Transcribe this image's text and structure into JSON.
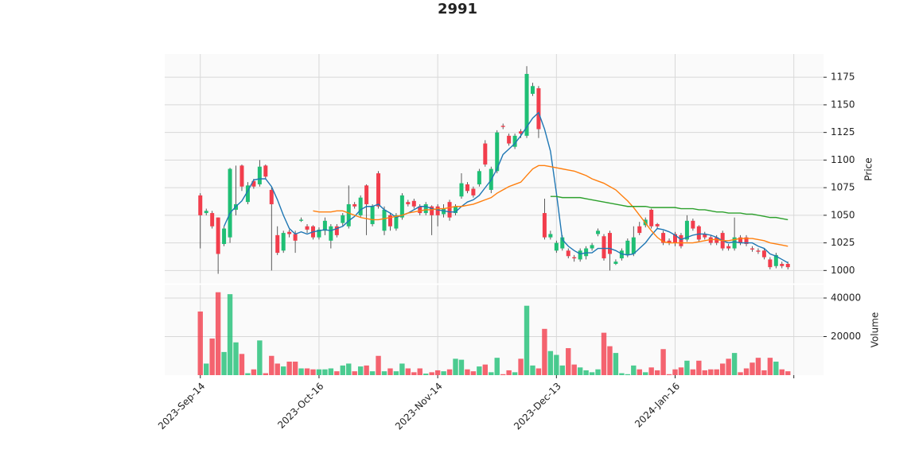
{
  "chart_data": {
    "type": "candlestick",
    "title": "2991",
    "categories": [
      "2023-Sep-14",
      null,
      null,
      null,
      null,
      null,
      null,
      null,
      null,
      null,
      null,
      null,
      null,
      null,
      null,
      null,
      null,
      null,
      null,
      null,
      "2023-Oct-16",
      null,
      null,
      null,
      null,
      null,
      null,
      null,
      null,
      null,
      null,
      null,
      null,
      null,
      null,
      null,
      null,
      null,
      null,
      null,
      "2023-Nov-14",
      null,
      null,
      null,
      null,
      null,
      null,
      null,
      null,
      null,
      null,
      null,
      null,
      null,
      null,
      null,
      null,
      null,
      null,
      null,
      "2023-Dec-13",
      null,
      null,
      null,
      null,
      null,
      null,
      null,
      null,
      null,
      null,
      null,
      null,
      null,
      null,
      null,
      null,
      null,
      null,
      null,
      "2024-Jan-16",
      null,
      null,
      null,
      null,
      null,
      null,
      null,
      null,
      null,
      null,
      null,
      null,
      null,
      null,
      null,
      null,
      null,
      null,
      null
    ],
    "open": [
      1068,
      1052,
      1052,
      1048,
      1024,
      1030,
      1055,
      1095,
      1062,
      1081,
      1078,
      1095,
      1073,
      1032,
      1018,
      1035,
      1033,
      1045,
      1040,
      1040,
      1030,
      1036,
      1027,
      1040,
      1043,
      1040,
      1060,
      1050,
      1077,
      1042,
      1088,
      1036,
      1050,
      1038,
      1048,
      1062,
      1063,
      1058,
      1052,
      1058,
      1058,
      1051,
      1062,
      1052,
      1067,
      1078,
      1074,
      1078,
      1115,
      1073,
      1090,
      1131,
      1122,
      1112,
      1126,
      1122,
      1160,
      1165,
      1052,
      1030,
      1018,
      1020,
      1018,
      1012,
      1010,
      1013,
      1020,
      1033,
      1031,
      1034,
      1006,
      1011,
      1014,
      1015,
      1040,
      1041,
      1055,
      1042,
      1034,
      1027,
      1033,
      1032,
      1028,
      1045,
      1040,
      1033,
      1030,
      1030,
      1034,
      1022,
      1020,
      1030,
      1030,
      1020,
      1018,
      1018,
      1010,
      1004,
      1006,
      1006
    ],
    "high": [
      1070,
      1056,
      1054,
      1048,
      1040,
      1093,
      1095,
      1096,
      1080,
      1083,
      1100,
      1096,
      1075,
      1040,
      1036,
      1037,
      1036,
      1048,
      1042,
      1041,
      1039,
      1048,
      1042,
      1042,
      1052,
      1077,
      1062,
      1068,
      1078,
      1060,
      1090,
      1058,
      1052,
      1052,
      1070,
      1064,
      1065,
      1060,
      1062,
      1059,
      1060,
      1060,
      1064,
      1060,
      1088,
      1080,
      1076,
      1092,
      1118,
      1094,
      1127,
      1133,
      1124,
      1124,
      1128,
      1185,
      1170,
      1167,
      1065,
      1036,
      1027,
      1032,
      1020,
      1014,
      1020,
      1022,
      1025,
      1038,
      1033,
      1036,
      1010,
      1020,
      1029,
      1040,
      1044,
      1048,
      1056,
      1043,
      1036,
      1029,
      1035,
      1034,
      1050,
      1047,
      1041,
      1035,
      1032,
      1032,
      1036,
      1024,
      1048,
      1032,
      1032,
      1022,
      1020,
      1020,
      1012,
      1016,
      1008,
      1008
    ],
    "low": [
      1020,
      1050,
      1038,
      997,
      1022,
      1025,
      1050,
      1072,
      1060,
      1074,
      1076,
      1083,
      1000,
      1014,
      1016,
      1030,
      1016,
      1044,
      1034,
      1028,
      1028,
      1032,
      1020,
      1030,
      1040,
      1038,
      1056,
      1048,
      1032,
      1040,
      1056,
      1032,
      1036,
      1036,
      1046,
      1058,
      1056,
      1050,
      1050,
      1032,
      1040,
      1048,
      1045,
      1050,
      1065,
      1070,
      1066,
      1076,
      1094,
      1070,
      1088,
      1128,
      1113,
      1110,
      1120,
      1120,
      1158,
      1120,
      1028,
      1028,
      1016,
      1018,
      1011,
      1008,
      1008,
      1010,
      1018,
      1031,
      1009,
      1000,
      1005,
      1009,
      1012,
      1013,
      1032,
      1039,
      1038,
      1038,
      1023,
      1023,
      1022,
      1020,
      1026,
      1036,
      1026,
      1028,
      1023,
      1023,
      1018,
      1018,
      1018,
      1023,
      1022,
      1017,
      1015,
      1010,
      1001,
      1002,
      1002,
      1001
    ],
    "close": [
      1050,
      1054,
      1040,
      1015,
      1038,
      1092,
      1060,
      1076,
      1077,
      1076,
      1094,
      1085,
      1060,
      1016,
      1034,
      1033,
      1027,
      1046,
      1037,
      1030,
      1037,
      1045,
      1040,
      1032,
      1050,
      1060,
      1058,
      1066,
      1060,
      1058,
      1058,
      1055,
      1040,
      1050,
      1068,
      1060,
      1058,
      1052,
      1060,
      1050,
      1050,
      1056,
      1048,
      1058,
      1079,
      1072,
      1068,
      1090,
      1096,
      1092,
      1125,
      1130,
      1115,
      1122,
      1124,
      1178,
      1167,
      1128,
      1030,
      1033,
      1025,
      1030,
      1013,
      1011,
      1018,
      1020,
      1023,
      1036,
      1011,
      1015,
      1008,
      1018,
      1027,
      1030,
      1034,
      1046,
      1040,
      1040,
      1025,
      1025,
      1025,
      1022,
      1045,
      1038,
      1028,
      1030,
      1025,
      1025,
      1020,
      1020,
      1030,
      1025,
      1024,
      1019,
      1017,
      1012,
      1003,
      1014,
      1004,
      1003
    ],
    "volume": [
      33000,
      6000,
      19000,
      43000,
      12000,
      42000,
      17000,
      11000,
      1000,
      3000,
      18000,
      1000,
      10000,
      6000,
      4500,
      7000,
      7000,
      3500,
      3500,
      3000,
      3000,
      3000,
      3500,
      2000,
      5000,
      6000,
      2000,
      4500,
      5000,
      2000,
      10000,
      2000,
      3500,
      2000,
      6000,
      3500,
      1500,
      3500,
      800,
      1500,
      2500,
      2000,
      3000,
      8500,
      8000,
      3000,
      2000,
      4500,
      5500,
      1500,
      9000,
      500,
      2500,
      1500,
      8500,
      36000,
      5000,
      3500,
      24000,
      12500,
      10500,
      5000,
      14000,
      5500,
      4000,
      2500,
      1500,
      3000,
      22000,
      15000,
      11500,
      1000,
      500,
      5000,
      3000,
      1500,
      4000,
      2500,
      13500,
      500,
      3000,
      4000,
      7500,
      3000,
      7500,
      2500,
      3000,
      3000,
      6000,
      8500,
      11500,
      1500,
      3500,
      6500,
      9000,
      2500,
      9000,
      7000,
      3000,
      2000
    ],
    "up_color": "#1fbf75",
    "down_color": "#f23d4c",
    "moving_averages": [
      {
        "color": "#1f77b4",
        "values": [
          null,
          null,
          null,
          null,
          1040,
          1052,
          1058,
          1063,
          1072,
          1082,
          1083,
          1083,
          1076,
          1064,
          1050,
          1038,
          1033,
          1035,
          1033,
          1035,
          1036,
          1037,
          1036,
          1038,
          1040,
          1045,
          1049,
          1055,
          1058,
          1058,
          1060,
          1055,
          1052,
          1048,
          1050,
          1052,
          1055,
          1058,
          1058,
          1056,
          1055,
          1054,
          1053,
          1053,
          1058,
          1062,
          1064,
          1068,
          1075,
          1082,
          1092,
          1105,
          1110,
          1115,
          1122,
          1130,
          1138,
          1143,
          1128,
          1108,
          1070,
          1028,
          1022,
          1018,
          1015,
          1016,
          1016,
          1020,
          1020,
          1020,
          1018,
          1015,
          1014,
          1015,
          1020,
          1025,
          1032,
          1038,
          1037,
          1035,
          1032,
          1028,
          1030,
          1032,
          1033,
          1033,
          1032,
          1030,
          1027,
          1025,
          1026,
          1025,
          1025,
          1025,
          1022,
          1020,
          1015,
          1013,
          1010,
          1007
        ]
      },
      {
        "color": "#ff7f0e",
        "values": [
          null,
          null,
          null,
          null,
          null,
          null,
          null,
          null,
          null,
          null,
          null,
          null,
          null,
          null,
          null,
          null,
          null,
          null,
          null,
          1054,
          1053,
          1053,
          1053,
          1054,
          1054,
          1052,
          1050,
          1048,
          1047,
          1046,
          1046,
          1047,
          1048,
          1049,
          1050,
          1052,
          1053,
          1054,
          1055,
          1055,
          1056,
          1056,
          1057,
          1058,
          1058,
          1059,
          1060,
          1062,
          1064,
          1066,
          1070,
          1073,
          1076,
          1078,
          1080,
          1086,
          1092,
          1095,
          1095,
          1094,
          1093,
          1092,
          1091,
          1090,
          1088,
          1086,
          1083,
          1081,
          1079,
          1076,
          1073,
          1068,
          1063,
          1057,
          1050,
          1043,
          1036,
          1030,
          1026,
          1025,
          1025,
          1025,
          1025,
          1025,
          1026,
          1027,
          1028,
          1028,
          1027,
          1027,
          1028,
          1029,
          1029,
          1029,
          1028,
          1027,
          1025,
          1024,
          1023,
          1022
        ]
      },
      {
        "color": "#2ca02c",
        "values": [
          null,
          null,
          null,
          null,
          null,
          null,
          null,
          null,
          null,
          null,
          null,
          null,
          null,
          null,
          null,
          null,
          null,
          null,
          null,
          null,
          null,
          null,
          null,
          null,
          null,
          null,
          null,
          null,
          null,
          null,
          null,
          null,
          null,
          null,
          null,
          null,
          null,
          null,
          null,
          null,
          null,
          null,
          null,
          null,
          null,
          null,
          null,
          null,
          null,
          null,
          null,
          null,
          null,
          null,
          null,
          null,
          null,
          null,
          null,
          1067,
          1067,
          1066,
          1066,
          1066,
          1066,
          1065,
          1064,
          1063,
          1062,
          1061,
          1060,
          1059,
          1058,
          1058,
          1058,
          1058,
          1057,
          1057,
          1057,
          1057,
          1057,
          1056,
          1056,
          1056,
          1055,
          1055,
          1054,
          1053,
          1053,
          1052,
          1052,
          1052,
          1051,
          1051,
          1050,
          1049,
          1048,
          1048,
          1047,
          1046
        ]
      }
    ],
    "xlim": [
      -6,
      105
    ],
    "xticks": [
      0,
      20,
      40,
      60,
      80,
      100
    ],
    "ylim": [
      988,
      1196
    ],
    "yticks": [
      1000,
      1025,
      1050,
      1075,
      1100,
      1125,
      1150,
      1175
    ],
    "ylabel": "Price",
    "volume_ylim": [
      0,
      47000
    ],
    "volume_yticks": [
      20000,
      40000
    ],
    "volume_ylabel": "Volume",
    "grid": true
  }
}
